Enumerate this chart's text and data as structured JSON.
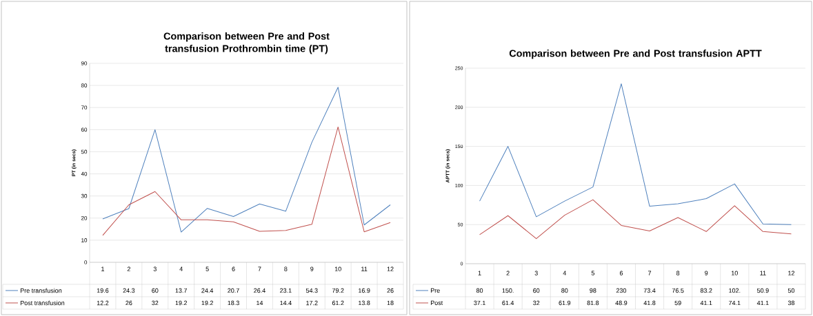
{
  "chart_data": [
    {
      "type": "line",
      "title": "Comparison between Pre and Post transfusion Prothrombin time (PT)",
      "ylabel": "PT (in secs)",
      "categories": [
        "1",
        "2",
        "3",
        "4",
        "5",
        "6",
        "7",
        "8",
        "9",
        "10",
        "11",
        "12"
      ],
      "series": [
        {
          "name": "Pre transfusion",
          "color": "#4f81bd",
          "values": [
            19.6,
            24.3,
            60,
            13.7,
            24.4,
            20.7,
            26.4,
            23.1,
            54.3,
            79.2,
            16.9,
            26
          ]
        },
        {
          "name": "Post transfusion",
          "color": "#c0504d",
          "values": [
            12.2,
            26,
            32,
            19.2,
            19.2,
            18.3,
            14,
            14.4,
            17.2,
            61.2,
            13.8,
            18
          ]
        }
      ],
      "ylim": [
        0,
        90
      ],
      "yticks": [
        0,
        10,
        20,
        30,
        40,
        50,
        60,
        70,
        80,
        90
      ],
      "grid": "y",
      "legend": "bottom",
      "data_labels": true
    },
    {
      "type": "line",
      "title": "Comparison between Pre and Post transfusion APTT",
      "ylabel": "APTT (in secs)",
      "categories": [
        "1",
        "2",
        "3",
        "4",
        "5",
        "6",
        "7",
        "8",
        "9",
        "10",
        "11",
        "12"
      ],
      "series": [
        {
          "name": "Pre",
          "color": "#4f81bd",
          "values": [
            80,
            150,
            60,
            80,
            98,
            230,
            73.4,
            76.5,
            83.2,
            102,
            50.9,
            50
          ],
          "value_labels": [
            "80",
            "150.",
            "60",
            "80",
            "98",
            "230",
            "73.4",
            "76.5",
            "83.2",
            "102.",
            "50.9",
            "50"
          ]
        },
        {
          "name": "Post",
          "color": "#c0504d",
          "values": [
            37.1,
            61.4,
            32,
            61.9,
            81.8,
            48.9,
            41.8,
            59,
            41.1,
            74.1,
            41.1,
            38
          ],
          "value_labels": [
            "37.1",
            "61.4",
            "32",
            "61.9",
            "81.8",
            "48.9",
            "41.8",
            "59",
            "41.1",
            "74.1",
            "41.1",
            "38"
          ]
        }
      ],
      "ylim": [
        0,
        250
      ],
      "yticks": [
        0,
        50,
        100,
        150,
        200,
        250
      ],
      "grid": "y",
      "legend": "bottom"
    }
  ]
}
